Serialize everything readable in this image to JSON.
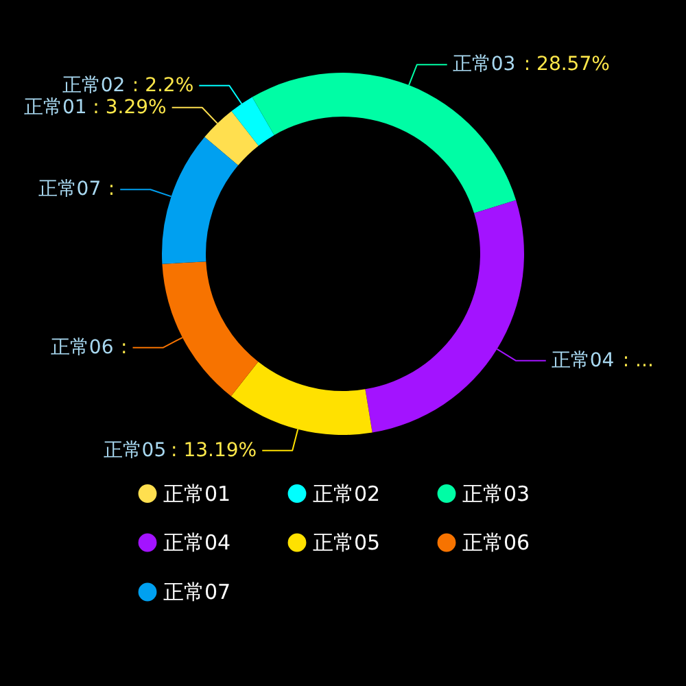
{
  "chart_data": {
    "type": "donut",
    "categories": [
      "正常01",
      "正常02",
      "正常03",
      "正常04",
      "正常05",
      "正常06",
      "正常07"
    ],
    "values": [
      3.29,
      2.2,
      28.57,
      27.2,
      13.19,
      13.5,
      12.05
    ],
    "colors": [
      "#ffdf4f",
      "#00ffff",
      "#00fda5",
      "#a313ff",
      "#ffe100",
      "#f77300",
      "#00a0f0"
    ],
    "value_labels": [
      ": 3.29%",
      ": 2.2%",
      ": 28.57%",
      ": ...",
      ": 13.19%",
      ":",
      ":"
    ],
    "legend": "bottom"
  }
}
